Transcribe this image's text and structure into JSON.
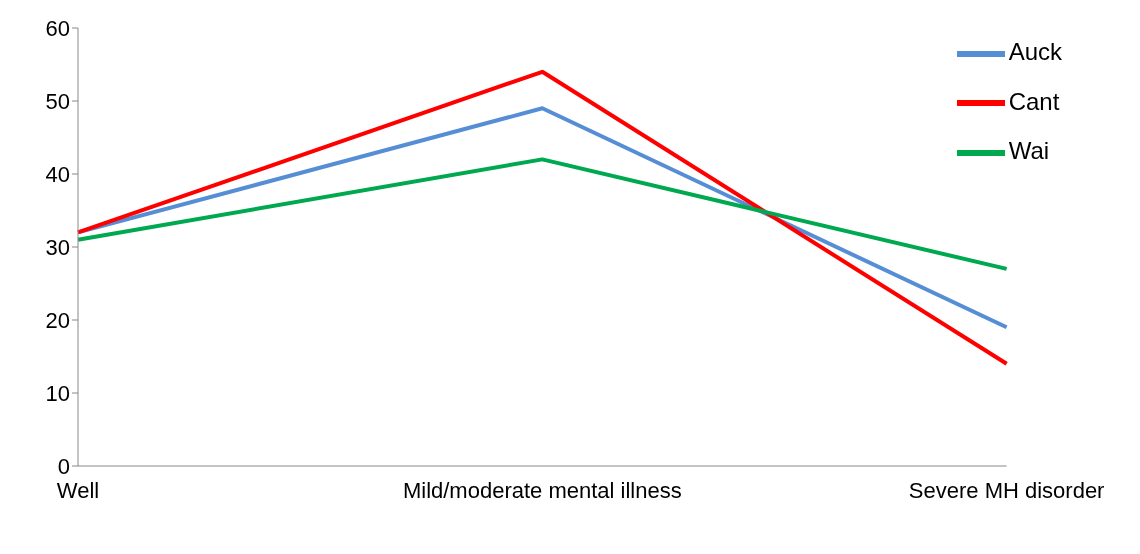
{
  "chart_data": {
    "type": "line",
    "categories": [
      "Well",
      "Mild/moderate mental illness",
      "Severe MH disorder"
    ],
    "series": [
      {
        "name": "Auck",
        "color": "#558ed5",
        "values": [
          32,
          49,
          19
        ]
      },
      {
        "name": "Cant",
        "color": "#ff0000",
        "values": [
          32,
          54,
          14
        ]
      },
      {
        "name": "Wai",
        "color": "#00a84f",
        "values": [
          31,
          42,
          27
        ]
      }
    ],
    "ylim": [
      0,
      60
    ],
    "yticks": [
      0,
      10,
      20,
      30,
      40,
      50,
      60
    ],
    "grid": false,
    "legend": "top right",
    "marker": "none",
    "line_style": "solid"
  }
}
